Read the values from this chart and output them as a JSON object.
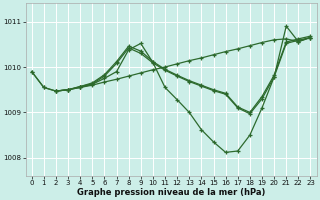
{
  "bg_color": "#cceee8",
  "grid_color": "#ffffff",
  "line_color": "#2d6a2d",
  "xlabel": "Graphe pression niveau de la mer (hPa)",
  "xlim": [
    -0.5,
    23.5
  ],
  "ylim": [
    1007.6,
    1011.4
  ],
  "yticks": [
    1008,
    1009,
    1010,
    1011
  ],
  "xticks": [
    0,
    1,
    2,
    3,
    4,
    5,
    6,
    7,
    8,
    9,
    10,
    11,
    12,
    13,
    14,
    15,
    16,
    17,
    18,
    19,
    20,
    21,
    22,
    23
  ],
  "l1x": [
    0,
    1,
    2,
    3,
    4,
    5,
    6,
    7,
    8,
    9,
    10,
    11,
    12,
    13,
    14,
    15,
    16,
    17,
    18,
    19,
    20,
    21,
    22,
    23
  ],
  "l1y": [
    1009.9,
    1009.55,
    1009.47,
    1009.5,
    1009.55,
    1009.6,
    1009.67,
    1009.73,
    1009.8,
    1009.87,
    1009.94,
    1010.0,
    1010.07,
    1010.14,
    1010.2,
    1010.27,
    1010.34,
    1010.4,
    1010.47,
    1010.54,
    1010.6,
    1010.62,
    1010.56,
    1010.65
  ],
  "l2x": [
    0,
    1,
    2,
    3,
    4,
    5,
    6,
    7,
    8,
    9,
    10,
    11,
    12,
    13,
    14,
    15,
    16,
    17,
    18,
    19,
    20,
    21,
    22,
    23
  ],
  "l2y": [
    1009.9,
    1009.55,
    1009.47,
    1009.5,
    1009.55,
    1009.62,
    1009.75,
    1009.9,
    1010.38,
    1010.52,
    1010.1,
    1009.55,
    1009.28,
    1009.0,
    1008.62,
    1008.35,
    1008.12,
    1008.15,
    1008.5,
    1009.1,
    1009.78,
    1010.9,
    1010.56,
    1010.65
  ],
  "l3x": [
    2,
    3,
    4,
    5,
    6,
    7,
    8,
    9,
    10,
    11,
    12,
    13,
    14,
    15,
    16,
    17,
    18,
    19,
    20,
    21,
    22,
    23
  ],
  "l3y": [
    1009.47,
    1009.5,
    1009.57,
    1009.65,
    1009.83,
    1010.12,
    1010.46,
    1010.35,
    1010.12,
    1009.95,
    1009.82,
    1009.7,
    1009.6,
    1009.5,
    1009.42,
    1009.12,
    1009.0,
    1009.35,
    1009.82,
    1010.55,
    1010.62,
    1010.68
  ],
  "l4x": [
    2,
    3,
    4,
    5,
    6,
    7,
    8,
    9,
    10,
    11,
    12,
    13,
    14,
    15,
    16,
    17,
    18,
    19,
    20,
    21,
    22,
    23
  ],
  "l4y": [
    1009.47,
    1009.5,
    1009.57,
    1009.63,
    1009.8,
    1010.08,
    1010.42,
    1010.3,
    1010.09,
    1009.93,
    1009.8,
    1009.68,
    1009.58,
    1009.48,
    1009.4,
    1009.1,
    1008.97,
    1009.3,
    1009.78,
    1010.52,
    1010.59,
    1010.65
  ]
}
